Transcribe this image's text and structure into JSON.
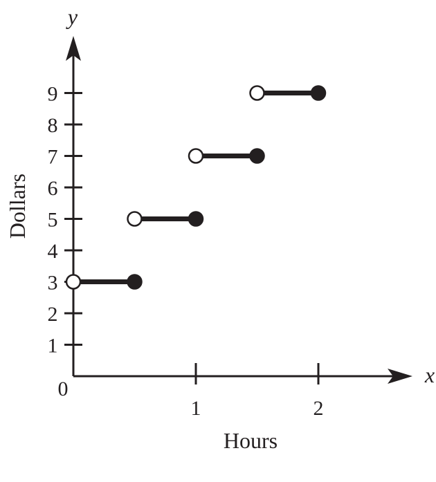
{
  "chart_data": {
    "type": "line",
    "subtype": "step-function",
    "title": "",
    "xlabel": "Hours",
    "ylabel": "Dollars",
    "x_axis_variable": "x",
    "y_axis_variable": "y",
    "origin_label": "0",
    "xlim": [
      0,
      2.5
    ],
    "ylim": [
      0,
      10
    ],
    "x_ticks": [
      {
        "value": 1,
        "label": "1"
      },
      {
        "value": 2,
        "label": "2"
      }
    ],
    "y_ticks": [
      {
        "value": 1,
        "label": "1"
      },
      {
        "value": 2,
        "label": "2"
      },
      {
        "value": 3,
        "label": "3"
      },
      {
        "value": 4,
        "label": "4"
      },
      {
        "value": 5,
        "label": "5"
      },
      {
        "value": 6,
        "label": "6"
      },
      {
        "value": 7,
        "label": "7"
      },
      {
        "value": 8,
        "label": "8"
      },
      {
        "value": 9,
        "label": "9"
      }
    ],
    "segments": [
      {
        "x_start": 0,
        "x_end": 0.5,
        "y": 3,
        "start_closed": false,
        "end_closed": true
      },
      {
        "x_start": 0.5,
        "x_end": 1,
        "y": 5,
        "start_closed": false,
        "end_closed": true
      },
      {
        "x_start": 1,
        "x_end": 1.5,
        "y": 7,
        "start_closed": false,
        "end_closed": true
      },
      {
        "x_start": 1.5,
        "x_end": 2,
        "y": 9,
        "start_closed": false,
        "end_closed": true
      }
    ],
    "grid": false,
    "legend": "none",
    "colors": {
      "ink": "#231f20",
      "background": "#ffffff"
    }
  }
}
